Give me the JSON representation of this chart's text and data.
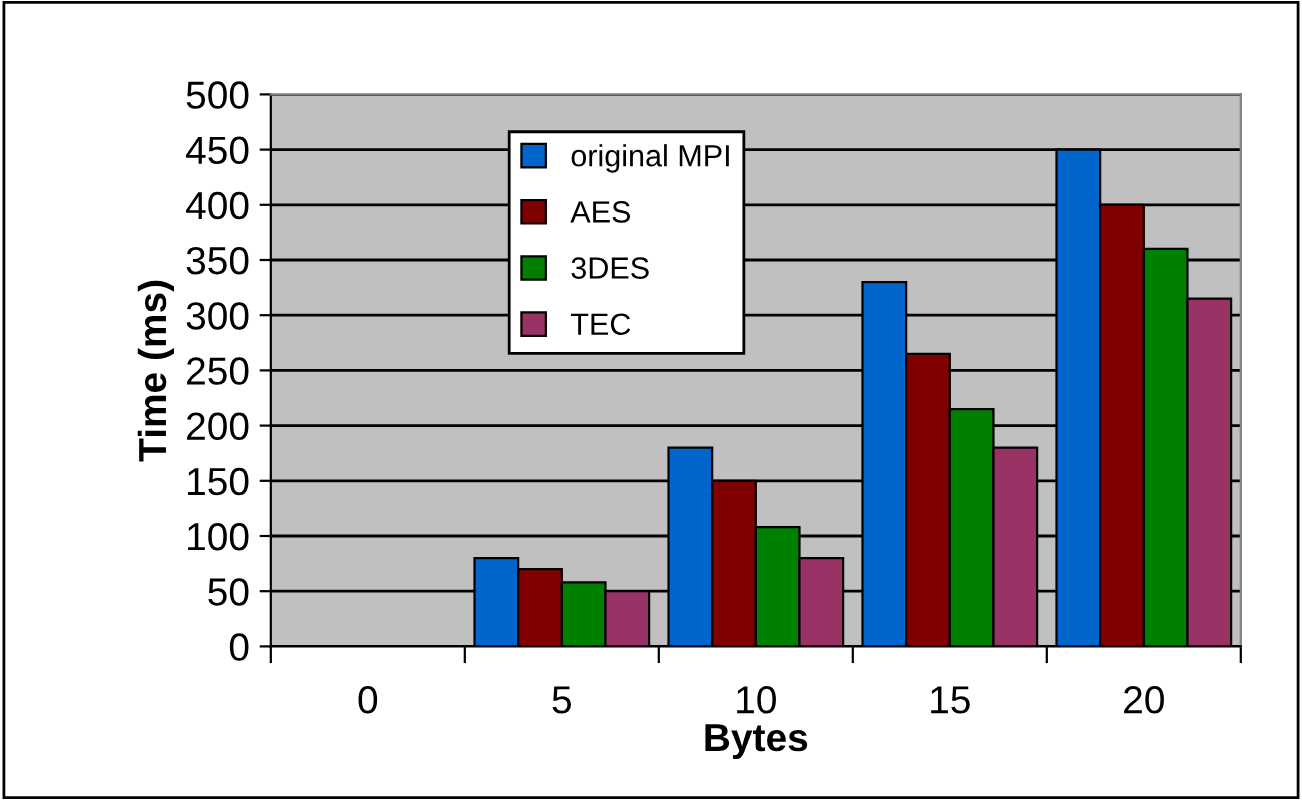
{
  "chart_data": {
    "type": "bar",
    "xlabel": "Bytes",
    "ylabel": "Time (ms)",
    "categories": [
      "0",
      "5",
      "10",
      "15",
      "20"
    ],
    "series": [
      {
        "name": "original MPI",
        "color": "#0066cc",
        "values": [
          null,
          80,
          180,
          330,
          450
        ]
      },
      {
        "name": "AES",
        "color": "#800000",
        "values": [
          null,
          70,
          150,
          265,
          400
        ]
      },
      {
        "name": "3DES",
        "color": "#008000",
        "values": [
          null,
          58,
          108,
          215,
          360
        ]
      },
      {
        "name": "TEC",
        "color": "#993366",
        "values": [
          null,
          50,
          80,
          180,
          315
        ]
      }
    ],
    "ylim": [
      0,
      500
    ],
    "yticks": [
      0,
      50,
      100,
      150,
      200,
      250,
      300,
      350,
      400,
      450,
      500
    ],
    "grid": "y",
    "legend": "top"
  }
}
